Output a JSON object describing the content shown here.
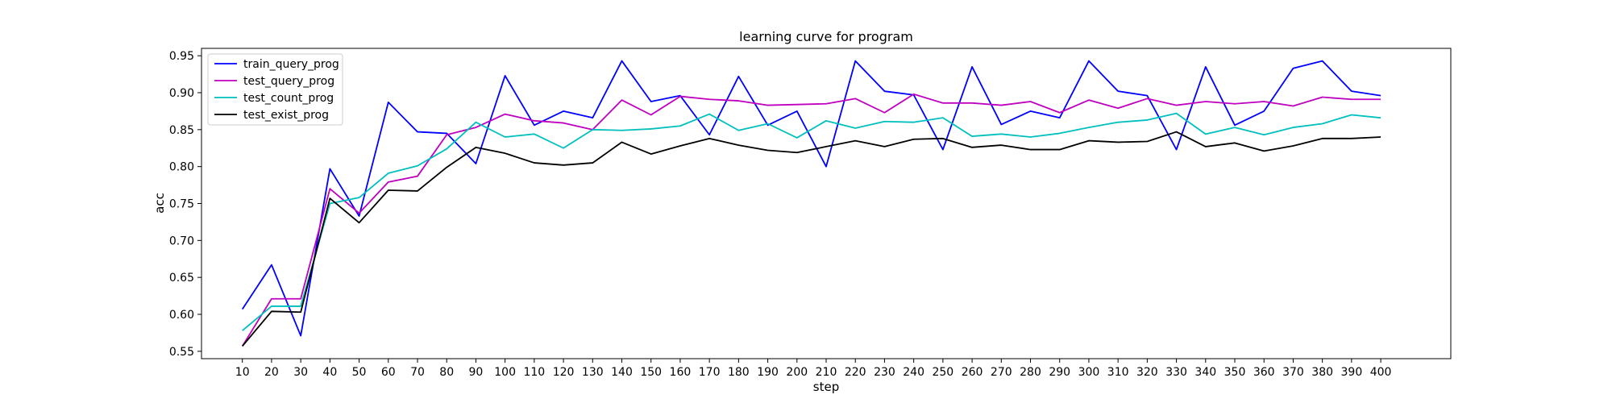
{
  "chart_data": {
    "type": "line",
    "title": "learning curve for program",
    "xlabel": "step",
    "ylabel": "acc",
    "xlim": [
      -4,
      424
    ],
    "ylim": [
      0.54,
      0.96
    ],
    "x": [
      10,
      20,
      30,
      40,
      50,
      60,
      70,
      80,
      90,
      100,
      110,
      120,
      130,
      140,
      150,
      160,
      170,
      180,
      190,
      200,
      210,
      220,
      230,
      240,
      250,
      260,
      270,
      280,
      290,
      300,
      310,
      320,
      330,
      340,
      350,
      360,
      370,
      380,
      390,
      400
    ],
    "x_tick_labels": [
      "10",
      "20",
      "30",
      "40",
      "50",
      "60",
      "70",
      "80",
      "90",
      "100",
      "110",
      "120",
      "130",
      "140",
      "150",
      "160",
      "170",
      "180",
      "190",
      "200",
      "210",
      "220",
      "230",
      "240",
      "250",
      "260",
      "270",
      "280",
      "290",
      "300",
      "310",
      "320",
      "330",
      "340",
      "350",
      "360",
      "370",
      "380",
      "390",
      "400"
    ],
    "y_ticks": [
      0.55,
      0.6,
      0.65,
      0.7,
      0.75,
      0.8,
      0.85,
      0.9,
      0.95
    ],
    "y_tick_labels": [
      "0.55",
      "0.60",
      "0.65",
      "0.70",
      "0.75",
      "0.80",
      "0.85",
      "0.90",
      "0.95"
    ],
    "grid": false,
    "legend_position": "upper-left",
    "series": [
      {
        "name": "train_query_prog",
        "color": "#0000ff",
        "values": [
          0.607,
          0.667,
          0.571,
          0.797,
          0.733,
          0.887,
          0.847,
          0.845,
          0.804,
          0.923,
          0.856,
          0.875,
          0.866,
          0.943,
          0.888,
          0.896,
          0.843,
          0.922,
          0.856,
          0.875,
          0.8,
          0.943,
          0.902,
          0.897,
          0.823,
          0.935,
          0.857,
          0.875,
          0.866,
          0.943,
          0.902,
          0.896,
          0.823,
          0.935,
          0.856,
          0.875,
          0.933,
          0.943,
          0.902,
          0.896
        ]
      },
      {
        "name": "test_query_prog",
        "color": "#bf00bf",
        "values": [
          0.557,
          0.621,
          0.621,
          0.77,
          0.737,
          0.779,
          0.787,
          0.843,
          0.853,
          0.871,
          0.862,
          0.859,
          0.85,
          0.89,
          0.87,
          0.895,
          0.891,
          0.889,
          0.883,
          0.884,
          0.885,
          0.892,
          0.873,
          0.898,
          0.886,
          0.886,
          0.883,
          0.888,
          0.873,
          0.89,
          0.879,
          0.892,
          0.883,
          0.888,
          0.885,
          0.888,
          0.882,
          0.894,
          0.891,
          0.891
        ]
      },
      {
        "name": "test_count_prog",
        "color": "#00bfbf",
        "values": [
          0.578,
          0.611,
          0.611,
          0.75,
          0.758,
          0.791,
          0.801,
          0.824,
          0.86,
          0.84,
          0.844,
          0.825,
          0.85,
          0.849,
          0.851,
          0.855,
          0.871,
          0.849,
          0.858,
          0.839,
          0.862,
          0.852,
          0.861,
          0.86,
          0.866,
          0.841,
          0.844,
          0.84,
          0.845,
          0.853,
          0.86,
          0.863,
          0.872,
          0.844,
          0.853,
          0.843,
          0.853,
          0.858,
          0.87,
          0.866
        ]
      },
      {
        "name": "test_exist_prog",
        "color": "#000000",
        "values": [
          0.557,
          0.604,
          0.603,
          0.757,
          0.724,
          0.768,
          0.767,
          0.799,
          0.826,
          0.818,
          0.805,
          0.802,
          0.805,
          0.833,
          0.817,
          0.828,
          0.838,
          0.829,
          0.822,
          0.819,
          0.827,
          0.835,
          0.827,
          0.837,
          0.838,
          0.826,
          0.829,
          0.823,
          0.823,
          0.835,
          0.833,
          0.834,
          0.847,
          0.827,
          0.832,
          0.821,
          0.828,
          0.838,
          0.838,
          0.84
        ]
      }
    ]
  }
}
